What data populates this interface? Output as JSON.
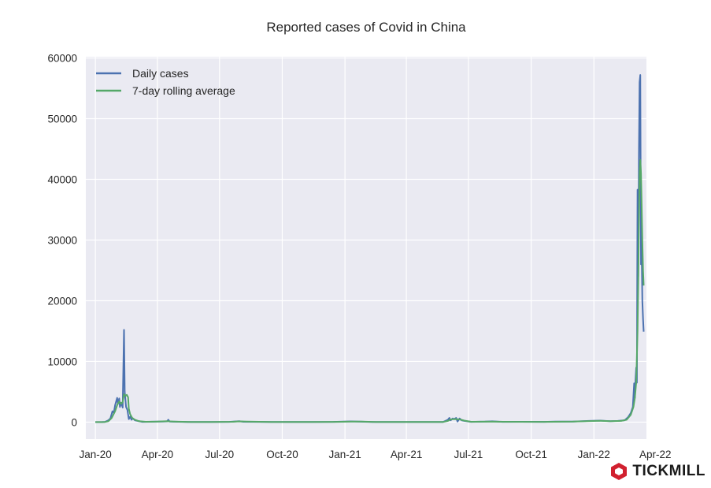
{
  "colors": {
    "plot_bg": "#eaeaf2",
    "grid": "#ffffff",
    "daily": "#4c72b0",
    "rolling": "#55a868",
    "brand": "#d1202f"
  },
  "brand": {
    "name": "TICKMILL",
    "icon": "tickmill-logo-icon"
  },
  "chart_data": {
    "type": "line",
    "title": "Reported cases of Covid in China",
    "xlabel": "",
    "ylabel": "",
    "x_range": [
      "2019-12-18",
      "2022-03-19"
    ],
    "ylim": [
      -2800,
      60200
    ],
    "grid": true,
    "legend_position": "top-left",
    "x_ticks": [
      {
        "date": "2020-01-01",
        "label": "Jan-20"
      },
      {
        "date": "2020-04-01",
        "label": "Apr-20"
      },
      {
        "date": "2020-07-01",
        "label": "Jul-20"
      },
      {
        "date": "2020-10-01",
        "label": "Oct-20"
      },
      {
        "date": "2021-01-01",
        "label": "Jan-21"
      },
      {
        "date": "2021-04-01",
        "label": "Apr-21"
      },
      {
        "date": "2021-07-01",
        "label": "Jul-21"
      },
      {
        "date": "2021-10-01",
        "label": "Oct-21"
      },
      {
        "date": "2022-01-01",
        "label": "Jan-22"
      },
      {
        "date": "2022-04-01",
        "label": "Apr-22"
      }
    ],
    "y_ticks": [
      {
        "value": 0,
        "label": "0"
      },
      {
        "value": 10000,
        "label": "10000"
      },
      {
        "value": 20000,
        "label": "20000"
      },
      {
        "value": 30000,
        "label": "30000"
      },
      {
        "value": 40000,
        "label": "40000"
      },
      {
        "value": 50000,
        "label": "50000"
      },
      {
        "value": 60000,
        "label": "60000"
      }
    ],
    "series": [
      {
        "name": "Daily cases",
        "points": [
          [
            "2020-01-01",
            0
          ],
          [
            "2020-01-10",
            0
          ],
          [
            "2020-01-15",
            50
          ],
          [
            "2020-01-20",
            300
          ],
          [
            "2020-01-23",
            600
          ],
          [
            "2020-01-26",
            1800
          ],
          [
            "2020-01-28",
            1500
          ],
          [
            "2020-01-30",
            2800
          ],
          [
            "2020-02-02",
            4000
          ],
          [
            "2020-02-03",
            3000
          ],
          [
            "2020-02-05",
            3900
          ],
          [
            "2020-02-06",
            2500
          ],
          [
            "2020-02-08",
            3200
          ],
          [
            "2020-02-10",
            2400
          ],
          [
            "2020-02-12",
            15200
          ],
          [
            "2020-02-13",
            5000
          ],
          [
            "2020-02-15",
            2500
          ],
          [
            "2020-02-17",
            2000
          ],
          [
            "2020-02-19",
            500
          ],
          [
            "2020-02-21",
            900
          ],
          [
            "2020-02-23",
            400
          ],
          [
            "2020-02-25",
            600
          ],
          [
            "2020-02-28",
            300
          ],
          [
            "2020-03-03",
            200
          ],
          [
            "2020-03-10",
            40
          ],
          [
            "2020-03-20",
            60
          ],
          [
            "2020-03-31",
            100
          ],
          [
            "2020-04-08",
            100
          ],
          [
            "2020-04-15",
            120
          ],
          [
            "2020-04-17",
            400
          ],
          [
            "2020-04-19",
            80
          ],
          [
            "2020-05-15",
            20
          ],
          [
            "2020-06-15",
            30
          ],
          [
            "2020-07-15",
            40
          ],
          [
            "2020-07-30",
            150
          ],
          [
            "2020-08-05",
            60
          ],
          [
            "2020-09-15",
            20
          ],
          [
            "2020-11-15",
            30
          ],
          [
            "2020-12-15",
            50
          ],
          [
            "2021-01-10",
            120
          ],
          [
            "2021-01-20",
            80
          ],
          [
            "2021-02-10",
            20
          ],
          [
            "2021-03-15",
            15
          ],
          [
            "2021-04-15",
            15
          ],
          [
            "2021-05-25",
            30
          ],
          [
            "2021-06-01",
            400
          ],
          [
            "2021-06-03",
            700
          ],
          [
            "2021-06-05",
            300
          ],
          [
            "2021-06-08",
            600
          ],
          [
            "2021-06-10",
            500
          ],
          [
            "2021-06-13",
            700
          ],
          [
            "2021-06-15",
            100
          ],
          [
            "2021-06-18",
            600
          ],
          [
            "2021-06-21",
            300
          ],
          [
            "2021-06-25",
            200
          ],
          [
            "2021-07-05",
            50
          ],
          [
            "2021-07-25",
            80
          ],
          [
            "2021-08-05",
            130
          ],
          [
            "2021-08-20",
            50
          ],
          [
            "2021-09-15",
            60
          ],
          [
            "2021-10-20",
            40
          ],
          [
            "2021-11-05",
            80
          ],
          [
            "2021-12-01",
            100
          ],
          [
            "2021-12-25",
            200
          ],
          [
            "2022-01-10",
            250
          ],
          [
            "2022-01-25",
            150
          ],
          [
            "2022-02-05",
            200
          ],
          [
            "2022-02-15",
            300
          ],
          [
            "2022-02-20",
            800
          ],
          [
            "2022-02-24",
            1500
          ],
          [
            "2022-02-27",
            2500
          ],
          [
            "2022-03-01",
            6400
          ],
          [
            "2022-03-02",
            4000
          ],
          [
            "2022-03-03",
            7000
          ],
          [
            "2022-03-04",
            9000
          ],
          [
            "2022-03-05",
            6500
          ],
          [
            "2022-03-06",
            38300
          ],
          [
            "2022-03-07",
            24000
          ],
          [
            "2022-03-08",
            45000
          ],
          [
            "2022-03-09",
            56000
          ],
          [
            "2022-03-10",
            57200
          ],
          [
            "2022-03-11",
            26000
          ],
          [
            "2022-03-12",
            29000
          ],
          [
            "2022-03-13",
            20000
          ],
          [
            "2022-03-14",
            17000
          ],
          [
            "2022-03-15",
            14900
          ]
        ]
      },
      {
        "name": "7-day rolling average",
        "points": [
          [
            "2020-01-01",
            0
          ],
          [
            "2020-01-10",
            0
          ],
          [
            "2020-01-15",
            30
          ],
          [
            "2020-01-20",
            150
          ],
          [
            "2020-01-25",
            700
          ],
          [
            "2020-01-30",
            1800
          ],
          [
            "2020-02-02",
            2800
          ],
          [
            "2020-02-05",
            3400
          ],
          [
            "2020-02-08",
            3000
          ],
          [
            "2020-02-10",
            3300
          ],
          [
            "2020-02-12",
            4600
          ],
          [
            "2020-02-14",
            4300
          ],
          [
            "2020-02-16",
            4500
          ],
          [
            "2020-02-18",
            4100
          ],
          [
            "2020-02-19",
            2200
          ],
          [
            "2020-02-21",
            1300
          ],
          [
            "2020-02-24",
            700
          ],
          [
            "2020-02-28",
            400
          ],
          [
            "2020-03-05",
            150
          ],
          [
            "2020-03-15",
            60
          ],
          [
            "2020-04-01",
            80
          ],
          [
            "2020-04-15",
            150
          ],
          [
            "2020-04-25",
            100
          ],
          [
            "2020-05-20",
            20
          ],
          [
            "2020-06-20",
            30
          ],
          [
            "2020-07-20",
            60
          ],
          [
            "2020-07-30",
            120
          ],
          [
            "2020-08-10",
            80
          ],
          [
            "2020-09-15",
            20
          ],
          [
            "2020-11-15",
            30
          ],
          [
            "2020-12-20",
            50
          ],
          [
            "2021-01-10",
            100
          ],
          [
            "2021-01-25",
            80
          ],
          [
            "2021-02-15",
            20
          ],
          [
            "2021-04-15",
            15
          ],
          [
            "2021-05-25",
            30
          ],
          [
            "2021-06-01",
            200
          ],
          [
            "2021-06-05",
            450
          ],
          [
            "2021-06-10",
            500
          ],
          [
            "2021-06-15",
            480
          ],
          [
            "2021-06-20",
            400
          ],
          [
            "2021-06-25",
            250
          ],
          [
            "2021-07-05",
            60
          ],
          [
            "2021-08-05",
            100
          ],
          [
            "2021-08-20",
            60
          ],
          [
            "2021-10-20",
            40
          ],
          [
            "2021-12-01",
            90
          ],
          [
            "2021-12-25",
            180
          ],
          [
            "2022-01-10",
            220
          ],
          [
            "2022-01-25",
            150
          ],
          [
            "2022-02-10",
            200
          ],
          [
            "2022-02-18",
            400
          ],
          [
            "2022-02-24",
            1200
          ],
          [
            "2022-02-28",
            2500
          ],
          [
            "2022-03-02",
            4000
          ],
          [
            "2022-03-04",
            6500
          ],
          [
            "2022-03-06",
            15000
          ],
          [
            "2022-03-07",
            23000
          ],
          [
            "2022-03-08",
            33000
          ],
          [
            "2022-03-09",
            41000
          ],
          [
            "2022-03-10",
            43200
          ],
          [
            "2022-03-11",
            41000
          ],
          [
            "2022-03-12",
            36000
          ],
          [
            "2022-03-13",
            30000
          ],
          [
            "2022-03-14",
            25000
          ],
          [
            "2022-03-15",
            22500
          ]
        ]
      }
    ]
  }
}
